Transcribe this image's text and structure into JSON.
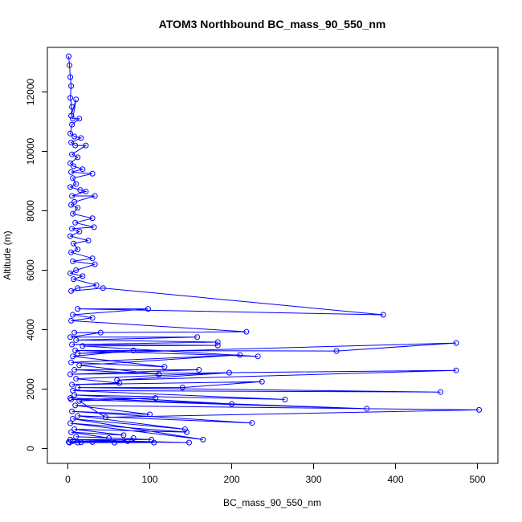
{
  "chart_data": {
    "type": "line",
    "title": "ATOM3 Northbound BC_mass_90_550_nm",
    "xlabel": "BC_mass_90_550_nm",
    "ylabel": "Altitude (m)",
    "xlim": [
      -25,
      525
    ],
    "ylim": [
      -500,
      13500
    ],
    "xticks": [
      0,
      100,
      200,
      300,
      400,
      500
    ],
    "yticks": [
      0,
      2000,
      4000,
      6000,
      8000,
      10000,
      12000
    ],
    "grid": false,
    "legend": "none",
    "color": "#0000ff",
    "markers": "open-circle",
    "series": [
      {
        "values": [
          [
            1,
            13200
          ],
          [
            2,
            12900
          ],
          [
            3,
            12500
          ],
          [
            4,
            12200
          ],
          [
            3,
            11800
          ],
          [
            5,
            11500
          ],
          [
            4,
            11200
          ],
          [
            10,
            11750
          ],
          [
            6,
            11100
          ],
          [
            14,
            11100
          ],
          [
            5,
            10900
          ],
          [
            3,
            10600
          ],
          [
            8,
            10500
          ],
          [
            16,
            10450
          ],
          [
            4,
            10300
          ],
          [
            9,
            10200
          ],
          [
            22,
            10200
          ],
          [
            5,
            9900
          ],
          [
            12,
            9800
          ],
          [
            3,
            9600
          ],
          [
            7,
            9500
          ],
          [
            18,
            9400
          ],
          [
            4,
            9300
          ],
          [
            30,
            9250
          ],
          [
            6,
            9100
          ],
          [
            10,
            8900
          ],
          [
            3,
            8800
          ],
          [
            15,
            8700
          ],
          [
            22,
            8650
          ],
          [
            5,
            8500
          ],
          [
            33,
            8500
          ],
          [
            8,
            8300
          ],
          [
            4,
            8200
          ],
          [
            12,
            8100
          ],
          [
            6,
            7900
          ],
          [
            30,
            7750
          ],
          [
            9,
            7600
          ],
          [
            32,
            7450
          ],
          [
            5,
            7400
          ],
          [
            14,
            7300
          ],
          [
            3,
            7150
          ],
          [
            25,
            7000
          ],
          [
            7,
            6900
          ],
          [
            12,
            6700
          ],
          [
            4,
            6600
          ],
          [
            30,
            6400
          ],
          [
            6,
            6300
          ],
          [
            33,
            6200
          ],
          [
            10,
            6000
          ],
          [
            3,
            5900
          ],
          [
            18,
            5800
          ],
          [
            7,
            5700
          ],
          [
            35,
            5500
          ],
          [
            12,
            5400
          ],
          [
            4,
            5300
          ],
          [
            43,
            5400
          ],
          [
            385,
            4500
          ],
          [
            12,
            4700
          ],
          [
            98,
            4700
          ],
          [
            6,
            4500
          ],
          [
            30,
            4400
          ],
          [
            4,
            4300
          ],
          [
            218,
            3930
          ],
          [
            8,
            3900
          ],
          [
            40,
            3900
          ],
          [
            3,
            3750
          ],
          [
            158,
            3750
          ],
          [
            10,
            3650
          ],
          [
            183,
            3580
          ],
          [
            5,
            3500
          ],
          [
            183,
            3470
          ],
          [
            18,
            3450
          ],
          [
            232,
            3100
          ],
          [
            9,
            3300
          ],
          [
            328,
            3280
          ],
          [
            474,
            3550
          ],
          [
            12,
            3200
          ],
          [
            80,
            3300
          ],
          [
            6,
            3100
          ],
          [
            118,
            2750
          ],
          [
            4,
            2900
          ],
          [
            210,
            3150
          ],
          [
            14,
            2800
          ],
          [
            111,
            2500
          ],
          [
            8,
            2650
          ],
          [
            160,
            2650
          ],
          [
            3,
            2500
          ],
          [
            474,
            2630
          ],
          [
            60,
            2300
          ],
          [
            197,
            2550
          ],
          [
            10,
            2350
          ],
          [
            63,
            2200
          ],
          [
            5,
            2150
          ],
          [
            237,
            2250
          ],
          [
            140,
            2050
          ],
          [
            12,
            2050
          ],
          [
            455,
            1900
          ],
          [
            6,
            1950
          ],
          [
            265,
            1650
          ],
          [
            8,
            1800
          ],
          [
            200,
            1500
          ],
          [
            3,
            1700
          ],
          [
            365,
            1340
          ],
          [
            4,
            1650
          ],
          [
            107,
            1700
          ],
          [
            14,
            1600
          ],
          [
            46,
            1050
          ],
          [
            502,
            1300
          ],
          [
            9,
            1450
          ],
          [
            100,
            1150
          ],
          [
            5,
            1250
          ],
          [
            225,
            860
          ],
          [
            12,
            1100
          ],
          [
            143,
            650
          ],
          [
            6,
            1000
          ],
          [
            165,
            300
          ],
          [
            3,
            850
          ],
          [
            145,
            550
          ],
          [
            8,
            650
          ],
          [
            68,
            450
          ],
          [
            4,
            550
          ],
          [
            50,
            350
          ],
          [
            10,
            400
          ],
          [
            102,
            300
          ],
          [
            3,
            300
          ],
          [
            148,
            200
          ],
          [
            6,
            250
          ],
          [
            73,
            250
          ],
          [
            12,
            200
          ],
          [
            105,
            200
          ],
          [
            2,
            200
          ],
          [
            30,
            220
          ],
          [
            16,
            210
          ],
          [
            1,
            220
          ],
          [
            57,
            200
          ],
          [
            80,
            350
          ]
        ]
      }
    ]
  }
}
